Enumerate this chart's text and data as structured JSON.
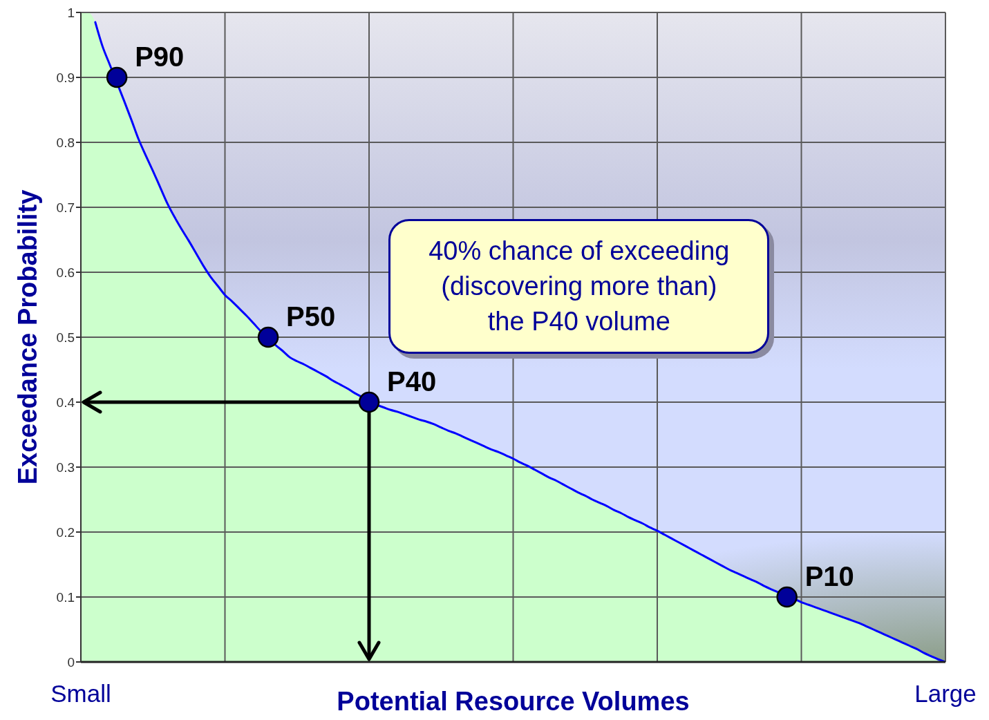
{
  "chart_data": {
    "type": "area",
    "xlabel": "Potential Resource Volumes",
    "ylabel": "Exceedance Probability",
    "categories": [
      "Small",
      null,
      null,
      null,
      null,
      null,
      null,
      null,
      null,
      null,
      null,
      null,
      null,
      null,
      null,
      null,
      null,
      null,
      null,
      null,
      null,
      null,
      null,
      null,
      null,
      null,
      null,
      null,
      null,
      null,
      null,
      null,
      null,
      null,
      null,
      null,
      null,
      null,
      null,
      null,
      null,
      null,
      null,
      null,
      null,
      null,
      null,
      null,
      null,
      null,
      null,
      null,
      null,
      null,
      null,
      null,
      null,
      null,
      null,
      null,
      null,
      null,
      null,
      null,
      null,
      null,
      null,
      null,
      null,
      null,
      null,
      null,
      null,
      null,
      null,
      null,
      null,
      null,
      null,
      null,
      null,
      null,
      null,
      null,
      null,
      null,
      null,
      null,
      null,
      null,
      null,
      null,
      null,
      null,
      null,
      null,
      null,
      null,
      null,
      null,
      null,
      null,
      null,
      null,
      null,
      null,
      null,
      null,
      null,
      null,
      null,
      null,
      null,
      null,
      null,
      null,
      null,
      null,
      null,
      null,
      "Large"
    ],
    "ylim": [
      0,
      1
    ],
    "yticks": [
      0,
      0.1,
      0.2,
      0.3,
      0.4,
      0.5,
      0.6,
      0.7,
      0.8,
      0.9,
      1
    ],
    "grid": true,
    "series": [
      {
        "color": "#ccffcc",
        "values": [
          1.0,
          1.0,
          0.985,
          0.948,
          0.92,
          null,
          0.864,
          0.835,
          0.805,
          0.78,
          0.756,
          0.731,
          0.706,
          0.685,
          0.666,
          0.648,
          0.629,
          0.61,
          0.593,
          0.579,
          0.565,
          0.555,
          0.544,
          0.533,
          0.521,
          0.509,
          null,
          0.488,
          0.479,
          0.469,
          0.463,
          0.458,
          0.452,
          0.446,
          0.44,
          0.433,
          0.427,
          0.421,
          0.414,
          0.408,
          null,
          0.396,
          0.392,
          0.388,
          0.385,
          0.381,
          0.377,
          0.373,
          0.37,
          0.366,
          0.361,
          0.356,
          0.352,
          0.347,
          0.342,
          0.337,
          0.332,
          0.327,
          0.323,
          0.318,
          0.313,
          0.307,
          0.302,
          0.296,
          0.29,
          0.284,
          0.279,
          0.273,
          0.267,
          0.261,
          0.256,
          0.25,
          0.245,
          0.24,
          0.234,
          0.229,
          0.223,
          0.218,
          0.213,
          0.207,
          0.202,
          0.196,
          0.19,
          0.184,
          0.178,
          0.172,
          0.166,
          0.16,
          0.154,
          0.148,
          0.142,
          0.137,
          0.132,
          0.127,
          0.122,
          0.116,
          0.111,
          0.106,
          null,
          0.097,
          0.092,
          0.088,
          0.084,
          0.08,
          0.076,
          0.072,
          0.068,
          0.064,
          0.06,
          0.055,
          0.05,
          0.045,
          0.04,
          0.035,
          0.03,
          0.025,
          0.02,
          0.014,
          0.009,
          0.004,
          0
        ]
      },
      {
        "type": "line",
        "color": "#0000ff",
        "values": [
          null,
          null,
          0.985,
          0.948,
          0.92,
          null,
          0.864,
          0.835,
          0.805,
          0.78,
          0.756,
          0.731,
          0.706,
          0.685,
          0.666,
          0.648,
          0.629,
          0.61,
          0.593,
          0.579,
          0.565,
          0.555,
          0.544,
          0.533,
          0.521,
          0.509,
          0.5,
          0.488,
          0.479,
          0.469,
          0.463,
          0.458,
          0.452,
          0.446,
          0.44,
          0.433,
          0.427,
          0.421,
          0.414,
          0.408,
          0.4,
          0.396,
          0.392,
          0.388,
          0.385,
          0.381,
          0.377,
          0.373,
          0.37,
          0.366,
          0.361,
          0.356,
          0.352,
          0.347,
          0.342,
          0.337,
          0.332,
          0.327,
          0.323,
          0.318,
          0.313,
          0.307,
          0.302,
          0.296,
          0.29,
          0.284,
          0.279,
          0.273,
          0.267,
          0.261,
          0.256,
          0.25,
          0.245,
          0.24,
          0.234,
          0.229,
          0.223,
          0.218,
          0.213,
          0.207,
          0.202,
          0.196,
          0.19,
          0.184,
          0.178,
          0.172,
          0.166,
          0.16,
          0.154,
          0.148,
          0.142,
          0.137,
          0.132,
          0.127,
          0.122,
          0.116,
          0.111,
          0.106,
          0.1,
          0.097,
          0.092,
          0.088,
          0.084,
          0.08,
          0.076,
          0.072,
          0.068,
          0.064,
          0.06,
          0.055,
          0.05,
          0.045,
          0.04,
          0.035,
          0.03,
          0.025,
          0.02,
          0.014,
          0.009,
          0.004,
          0
        ]
      },
      {
        "type": "scatter",
        "color": "#000099",
        "marker": "circle",
        "values": [
          null,
          null,
          null,
          null,
          null,
          0.9,
          null,
          null,
          null,
          null,
          null,
          null,
          null,
          null,
          null,
          null,
          null,
          null,
          null,
          null,
          null,
          null,
          null,
          null,
          null,
          null,
          0.5,
          null,
          null,
          null,
          null,
          null,
          null,
          null,
          null,
          null,
          null,
          null,
          null,
          null,
          0.4,
          null,
          null,
          null,
          null,
          null,
          null,
          null,
          null,
          null,
          null,
          null,
          null,
          null,
          null,
          null,
          null,
          null,
          null,
          null,
          null,
          null,
          null,
          null,
          null,
          null,
          null,
          null,
          null,
          null,
          null,
          null,
          null,
          null,
          null,
          null,
          null,
          null,
          null,
          null,
          null,
          null,
          null,
          null,
          null,
          null,
          null,
          null,
          null,
          null,
          null,
          null,
          null,
          null,
          null,
          null,
          null,
          null,
          0.1,
          null,
          null,
          null,
          null,
          null,
          null,
          null,
          null,
          null,
          null,
          null,
          null,
          null,
          null,
          null,
          null,
          null,
          null,
          null,
          null,
          null,
          null
        ],
        "value_labels": [
          null,
          null,
          null,
          null,
          null,
          "P90",
          null,
          null,
          null,
          null,
          null,
          null,
          null,
          null,
          null,
          null,
          null,
          null,
          null,
          null,
          null,
          null,
          null,
          null,
          null,
          null,
          "P50",
          null,
          null,
          null,
          null,
          null,
          null,
          null,
          null,
          null,
          null,
          null,
          null,
          null,
          "P40",
          null,
          null,
          null,
          null,
          null,
          null,
          null,
          null,
          null,
          null,
          null,
          null,
          null,
          null,
          null,
          null,
          null,
          null,
          null,
          null,
          null,
          null,
          null,
          null,
          null,
          null,
          null,
          null,
          null,
          null,
          null,
          null,
          null,
          null,
          null,
          null,
          null,
          null,
          null,
          null,
          null,
          null,
          null,
          null,
          null,
          null,
          null,
          null,
          null,
          null,
          null,
          null,
          null,
          null,
          null,
          null,
          null,
          "P10",
          null,
          null,
          null,
          null,
          null,
          null,
          null,
          null,
          null,
          null,
          null,
          null,
          null,
          null,
          null,
          null,
          null,
          null,
          null,
          null,
          null,
          null
        ]
      }
    ],
    "ref_lines": [
      {
        "axis": "y",
        "value": 0.4,
        "color": "#000000"
      }
    ],
    "annotations": [
      "40% chance of exceeding\n(discovering more than)\nthe P40 volume"
    ]
  }
}
